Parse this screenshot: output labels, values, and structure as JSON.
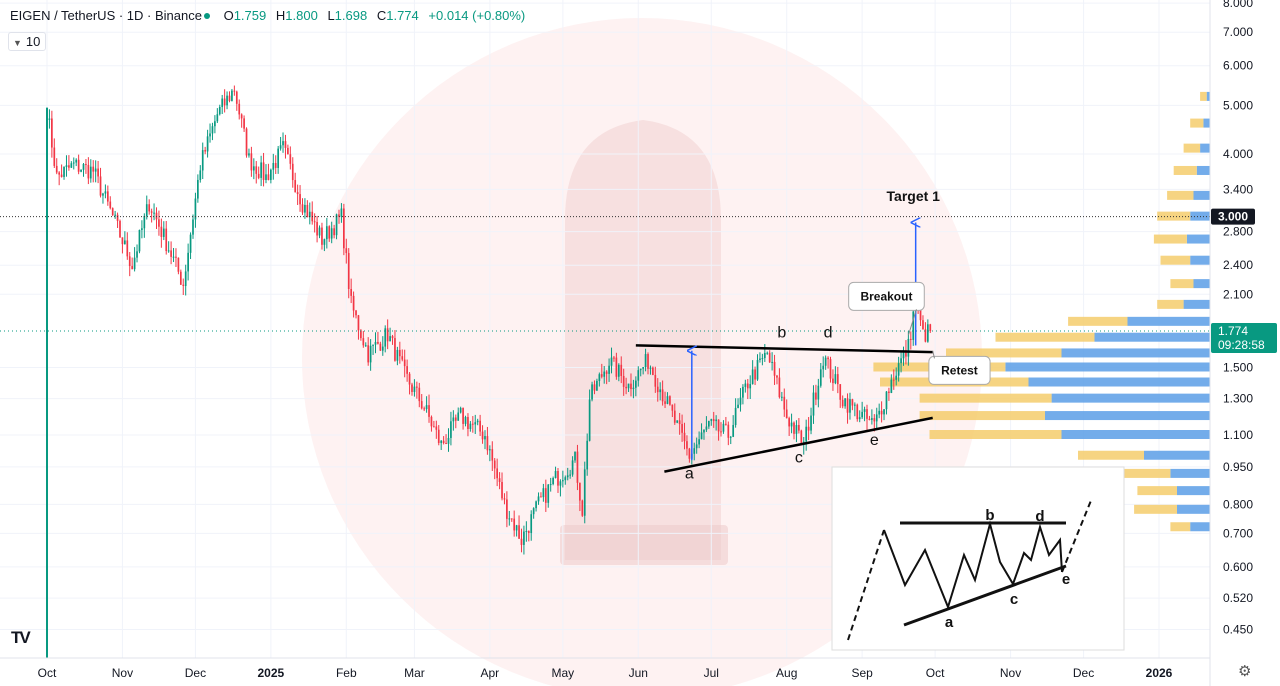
{
  "header": {
    "symbol": "EIGEN / TetherUS · 1D · Binance",
    "open_label": "O",
    "open": "1.759",
    "high_label": "H",
    "high": "1.800",
    "low_label": "L",
    "low": "1.698",
    "close_label": "C",
    "close": "1.774",
    "change": "+0.014 (+0.80%)"
  },
  "indicator_badge": "10",
  "colors": {
    "up": "#089981",
    "down": "#f23645",
    "vol_up": "#5b9ee6",
    "vol_down": "#f4cd6c",
    "annotation": "#2962ff"
  },
  "chart_data": {
    "type": "candlestick",
    "y_scale": "log",
    "y_ticks": [
      "8.000",
      "7.000",
      "6.000",
      "5.000",
      "4.000",
      "3.400",
      "2.800",
      "2.400",
      "2.100",
      "1.500",
      "1.300",
      "1.100",
      "0.950",
      "0.800",
      "0.700",
      "0.600",
      "0.520",
      "0.450"
    ],
    "x_ticks": [
      {
        "label": "Oct",
        "date": "2024-10-01"
      },
      {
        "label": "Nov",
        "date": "2024-11-01"
      },
      {
        "label": "Dec",
        "date": "2024-12-01"
      },
      {
        "label": "2025",
        "date": "2025-01-01"
      },
      {
        "label": "Feb",
        "date": "2025-02-01"
      },
      {
        "label": "Mar",
        "date": "2025-03-01"
      },
      {
        "label": "Apr",
        "date": "2025-04-01"
      },
      {
        "label": "May",
        "date": "2025-05-01"
      },
      {
        "label": "Jun",
        "date": "2025-06-01"
      },
      {
        "label": "Jul",
        "date": "2025-07-01"
      },
      {
        "label": "Aug",
        "date": "2025-08-01"
      },
      {
        "label": "Sep",
        "date": "2025-09-01"
      },
      {
        "label": "Oct",
        "date": "2025-10-01"
      },
      {
        "label": "Nov",
        "date": "2025-11-01"
      },
      {
        "label": "Dec",
        "date": "2025-12-01"
      },
      {
        "label": "2026",
        "date": "2026-01-01"
      }
    ],
    "price_path": [
      [
        "2024-10-01",
        4.9
      ],
      [
        "2024-10-05",
        3.6
      ],
      [
        "2024-10-12",
        3.8
      ],
      [
        "2024-10-20",
        3.7
      ],
      [
        "2024-10-28",
        3.0
      ],
      [
        "2024-11-05",
        2.4
      ],
      [
        "2024-11-12",
        3.2
      ],
      [
        "2024-11-20",
        2.6
      ],
      [
        "2024-11-26",
        2.2
      ],
      [
        "2024-12-03",
        3.8
      ],
      [
        "2024-12-10",
        4.8
      ],
      [
        "2024-12-17",
        5.4
      ],
      [
        "2024-12-23",
        3.9
      ],
      [
        "2024-12-30",
        3.6
      ],
      [
        "2025-01-06",
        4.1
      ],
      [
        "2025-01-14",
        3.2
      ],
      [
        "2025-01-22",
        2.7
      ],
      [
        "2025-01-30",
        3.0
      ],
      [
        "2025-02-03",
        2.0
      ],
      [
        "2025-02-10",
        1.6
      ],
      [
        "2025-02-18",
        1.75
      ],
      [
        "2025-02-25",
        1.45
      ],
      [
        "2025-03-05",
        1.25
      ],
      [
        "2025-03-12",
        1.05
      ],
      [
        "2025-03-20",
        1.2
      ],
      [
        "2025-03-30",
        1.1
      ],
      [
        "2025-04-07",
        0.8
      ],
      [
        "2025-04-14",
        0.68
      ],
      [
        "2025-04-21",
        0.8
      ],
      [
        "2025-04-28",
        0.9
      ],
      [
        "2025-05-06",
        0.98
      ],
      [
        "2025-05-09",
        0.78
      ],
      [
        "2025-05-12",
        1.3
      ],
      [
        "2025-05-20",
        1.55
      ],
      [
        "2025-05-28",
        1.38
      ],
      [
        "2025-06-05",
        1.55
      ],
      [
        "2025-06-12",
        1.3
      ],
      [
        "2025-06-22",
        1.0
      ],
      [
        "2025-06-30",
        1.15
      ],
      [
        "2025-07-08",
        1.1
      ],
      [
        "2025-07-16",
        1.4
      ],
      [
        "2025-07-24",
        1.6
      ],
      [
        "2025-08-01",
        1.2
      ],
      [
        "2025-08-08",
        1.05
      ],
      [
        "2025-08-16",
        1.58
      ],
      [
        "2025-08-24",
        1.3
      ],
      [
        "2025-09-01",
        1.2
      ],
      [
        "2025-09-06",
        1.15
      ],
      [
        "2025-09-14",
        1.45
      ],
      [
        "2025-09-20",
        1.65
      ],
      [
        "2025-09-23",
        2.05
      ],
      [
        "2025-09-26",
        1.74
      ],
      [
        "2025-09-29",
        1.774
      ]
    ],
    "volume_profile": {
      "up_color": "#5b9ee6",
      "down_color": "#f4cd6c",
      "bins": [
        [
          5.2,
          0.01,
          0.02
        ],
        [
          4.6,
          0.02,
          0.04
        ],
        [
          4.1,
          0.03,
          0.05
        ],
        [
          3.7,
          0.04,
          0.07
        ],
        [
          3.3,
          0.05,
          0.08
        ],
        [
          3.0,
          0.06,
          0.1
        ],
        [
          2.7,
          0.07,
          0.1
        ],
        [
          2.45,
          0.06,
          0.09
        ],
        [
          2.2,
          0.05,
          0.07
        ],
        [
          2.0,
          0.08,
          0.08
        ],
        [
          1.85,
          0.25,
          0.18
        ],
        [
          1.72,
          0.35,
          0.3
        ],
        [
          1.6,
          0.45,
          0.35
        ],
        [
          1.5,
          0.62,
          0.4
        ],
        [
          1.4,
          0.55,
          0.45
        ],
        [
          1.3,
          0.48,
          0.4
        ],
        [
          1.2,
          0.5,
          0.38
        ],
        [
          1.1,
          0.45,
          0.4
        ],
        [
          1.0,
          0.2,
          0.2
        ],
        [
          0.92,
          0.12,
          0.15
        ],
        [
          0.85,
          0.1,
          0.12
        ],
        [
          0.78,
          0.1,
          0.13
        ],
        [
          0.72,
          0.06,
          0.06
        ]
      ]
    },
    "horizontal_lines": [
      {
        "price": 3.0,
        "style": "dotted"
      },
      {
        "price": 1.774,
        "style": "dotted-green"
      }
    ],
    "price_labels": {
      "target_tag": "3.000",
      "last_price": "1.774",
      "countdown": "09:28:58"
    },
    "triangle": {
      "upper": [
        [
          "2025-05-31",
          1.66
        ],
        [
          "2025-09-30",
          1.61
        ]
      ],
      "lower": [
        [
          "2025-06-22",
          0.96
        ],
        [
          "2025-09-30",
          1.19
        ]
      ]
    },
    "arrows": [
      {
        "date": "2025-06-23",
        "from": 0.98,
        "to": 1.62
      },
      {
        "date": "2025-09-23",
        "from": 1.66,
        "to": 2.92
      }
    ],
    "wave_labels": [
      {
        "text": "a",
        "date": "2025-06-22",
        "price": 0.9
      },
      {
        "text": "b",
        "date": "2025-07-30",
        "price": 1.72
      },
      {
        "text": "c",
        "date": "2025-08-06",
        "price": 0.97
      },
      {
        "text": "d",
        "date": "2025-08-18",
        "price": 1.72
      },
      {
        "text": "e",
        "date": "2025-09-06",
        "price": 1.05
      }
    ],
    "annotations": [
      {
        "text": "Target 1",
        "date": "2025-09-22",
        "price": 3.22
      },
      {
        "text": "Breakout",
        "date": "2025-09-11",
        "price": 2.08
      },
      {
        "text": "Retest",
        "date": "2025-10-11",
        "price": 1.48
      }
    ],
    "inset_labels": [
      "b",
      "d",
      "a",
      "c",
      "e"
    ]
  }
}
